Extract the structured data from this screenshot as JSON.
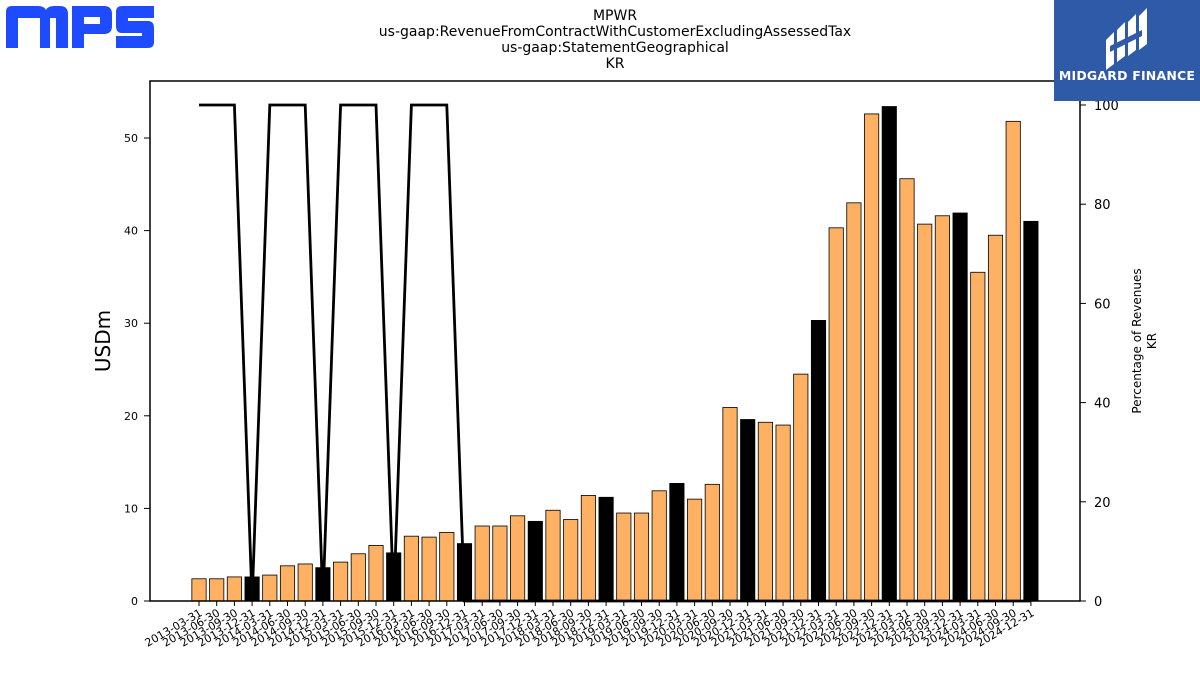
{
  "logos": {
    "left": {
      "name": "MPS",
      "color": "#1f4bff"
    },
    "right": {
      "name": "MIDGARD FINANCE",
      "bg": "#2f5aa8"
    }
  },
  "chart_data": {
    "type": "bar",
    "title_lines": [
      "MPWR",
      "us-gaap:RevenueFromContractWithCustomerExcludingAssessedTax",
      "us-gaap:StatementGeographical",
      "KR"
    ],
    "ylabel": "USDm",
    "y2label_lines": [
      "Percentage of Revenues",
      "KR"
    ],
    "ylim": [
      0,
      56
    ],
    "y2lim": [
      0,
      105
    ],
    "yticks": [
      0,
      10,
      20,
      30,
      40,
      50
    ],
    "y2ticks": [
      0,
      20,
      40,
      60,
      80,
      100
    ],
    "bar_color": "#ffb163",
    "highlight_color": "#000000",
    "line_color": "#000000",
    "categories": [
      "2013-03-31",
      "2013-06-30",
      "2013-09-30",
      "2013-12-31",
      "2014-03-31",
      "2014-06-30",
      "2014-09-30",
      "2014-12-31",
      "2015-03-31",
      "2015-06-30",
      "2015-09-30",
      "2015-12-31",
      "2016-03-31",
      "2016-06-30",
      "2016-09-30",
      "2016-12-31",
      "2017-03-31",
      "2017-06-30",
      "2017-09-30",
      "2017-12-31",
      "2018-03-31",
      "2018-06-30",
      "2018-09-30",
      "2018-12-31",
      "2019-03-31",
      "2019-06-30",
      "2019-09-30",
      "2019-12-31",
      "2020-03-31",
      "2020-06-30",
      "2020-09-30",
      "2020-12-31",
      "2021-03-31",
      "2021-06-30",
      "2021-09-30",
      "2021-12-31",
      "2022-03-31",
      "2022-06-30",
      "2022-09-30",
      "2022-12-31",
      "2023-03-31",
      "2023-06-30",
      "2023-09-30",
      "2023-12-31",
      "2024-03-31",
      "2024-06-30",
      "2024-09-30",
      "2024-12-31"
    ],
    "values": [
      2.4,
      2.4,
      2.6,
      2.6,
      2.8,
      3.8,
      4.0,
      3.6,
      4.2,
      5.1,
      6.0,
      5.2,
      7.0,
      6.9,
      7.4,
      6.2,
      8.1,
      8.1,
      9.2,
      8.6,
      9.8,
      8.8,
      11.4,
      11.2,
      9.5,
      9.5,
      11.9,
      12.7,
      11.0,
      12.6,
      20.9,
      19.6,
      19.3,
      19.0,
      24.5,
      30.3,
      40.3,
      43.0,
      52.6,
      53.4,
      45.6,
      40.7,
      41.6,
      41.9,
      35.5,
      39.5,
      51.8,
      41.0
    ],
    "highlighted": [
      false,
      false,
      false,
      true,
      false,
      false,
      false,
      true,
      false,
      false,
      false,
      true,
      false,
      false,
      false,
      true,
      false,
      false,
      false,
      true,
      false,
      false,
      false,
      true,
      false,
      false,
      false,
      true,
      false,
      false,
      false,
      true,
      false,
      false,
      false,
      true,
      false,
      false,
      false,
      true,
      false,
      false,
      false,
      true,
      false,
      false,
      false,
      true
    ],
    "series": [
      {
        "axis": "right",
        "type": "line",
        "values": [
          100,
          100,
          100,
          0,
          100,
          100,
          100,
          0,
          100,
          100,
          100,
          0,
          100,
          100,
          100,
          0,
          0,
          0,
          0,
          0,
          0,
          0,
          0,
          0,
          0,
          0,
          0,
          0,
          0,
          0,
          0,
          0,
          0,
          0,
          0,
          0,
          0,
          0,
          0,
          0,
          0,
          0,
          0,
          0,
          0,
          0,
          0,
          0
        ]
      }
    ]
  }
}
